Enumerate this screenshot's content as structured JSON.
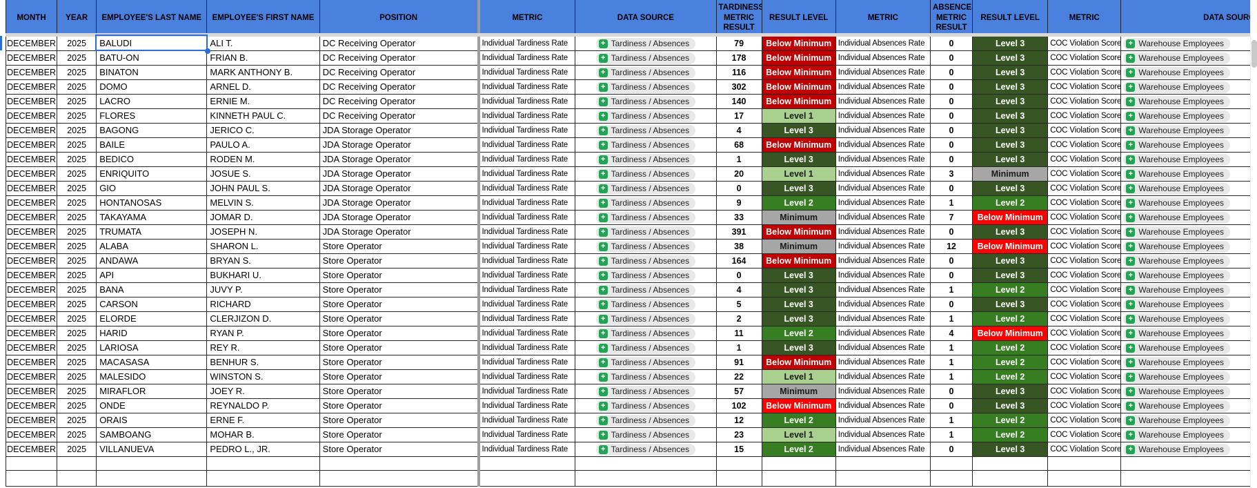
{
  "table": {
    "columns": [
      "MONTH",
      "YEAR",
      "EMPLOYEE'S LAST NAME",
      "EMPLOYEE'S FIRST NAME",
      "POSITION",
      "METRIC",
      "DATA SOURCE",
      "TARDINESS METRIC RESULT",
      "RESULT LEVEL",
      "METRIC",
      "ABSENCES METRIC RESULT",
      "RESULT LEVEL",
      "METRIC",
      "DATA SOURCE"
    ],
    "repeated": {
      "month": "DECEMBER",
      "year": "2025",
      "tardiness_metric": "Individual Tardiness Rate",
      "tardiness_source": "Tardiness / Absences",
      "absences_metric": "Individual Absences Rate",
      "coc_metric": "COC Violation Score",
      "coc_source": "Warehouse Employees"
    },
    "rows": [
      {
        "last_name": "BALUDI",
        "first_name": "ALI T.",
        "position": "DC Receiving Operator",
        "tardiness_result": "79",
        "tardiness_level": "below_min_dark",
        "absences_result": "0",
        "absences_level": "level_3"
      },
      {
        "last_name": "BATU-ON",
        "first_name": "FRIAN B.",
        "position": "DC Receiving Operator",
        "tardiness_result": "178",
        "tardiness_level": "below_min_dark",
        "absences_result": "0",
        "absences_level": "level_3"
      },
      {
        "last_name": "BINATON",
        "first_name": "MARK ANTHONY B.",
        "position": "DC Receiving Operator",
        "tardiness_result": "116",
        "tardiness_level": "below_min_dark",
        "absences_result": "0",
        "absences_level": "level_3"
      },
      {
        "last_name": "DOMO",
        "first_name": "ARNEL D.",
        "position": "DC Receiving Operator",
        "tardiness_result": "302",
        "tardiness_level": "below_min_dark",
        "absences_result": "0",
        "absences_level": "level_3"
      },
      {
        "last_name": "LACRO",
        "first_name": "ERNIE M.",
        "position": "DC Receiving Operator",
        "tardiness_result": "140",
        "tardiness_level": "below_min_dark",
        "absences_result": "0",
        "absences_level": "level_3"
      },
      {
        "last_name": "FLORES",
        "first_name": "KINNETH PAUL C.",
        "position": "DC Receiving Operator",
        "tardiness_result": "17",
        "tardiness_level": "level_1",
        "absences_result": "0",
        "absences_level": "level_3"
      },
      {
        "last_name": "BAGONG",
        "first_name": "JERICO C.",
        "position": "JDA Storage Operator",
        "tardiness_result": "4",
        "tardiness_level": "level_3",
        "absences_result": "0",
        "absences_level": "level_3"
      },
      {
        "last_name": "BAILE",
        "first_name": "PAULO A.",
        "position": "JDA Storage Operator",
        "tardiness_result": "68",
        "tardiness_level": "below_min_dark",
        "absences_result": "0",
        "absences_level": "level_3"
      },
      {
        "last_name": "BEDICO",
        "first_name": "RODEN M.",
        "position": "JDA Storage Operator",
        "tardiness_result": "1",
        "tardiness_level": "level_3",
        "absences_result": "0",
        "absences_level": "level_3"
      },
      {
        "last_name": "ENRIQUITO",
        "first_name": "JOSUE S.",
        "position": "JDA Storage Operator",
        "tardiness_result": "20",
        "tardiness_level": "level_1",
        "absences_result": "3",
        "absences_level": "minimum"
      },
      {
        "last_name": "GIO",
        "first_name": "JOHN PAUL S.",
        "position": "JDA Storage Operator",
        "tardiness_result": "0",
        "tardiness_level": "level_3",
        "absences_result": "0",
        "absences_level": "level_3"
      },
      {
        "last_name": "HONTANOSAS",
        "first_name": "MELVIN S.",
        "position": "JDA Storage Operator",
        "tardiness_result": "9",
        "tardiness_level": "level_2",
        "absences_result": "1",
        "absences_level": "level_2"
      },
      {
        "last_name": "TAKAYAMA",
        "first_name": "JOMAR D.",
        "position": "JDA Storage Operator",
        "tardiness_result": "33",
        "tardiness_level": "minimum",
        "absences_result": "7",
        "absences_level": "below_min_bright"
      },
      {
        "last_name": "TRUMATA",
        "first_name": "JOSEPH N.",
        "position": "JDA Storage Operator",
        "tardiness_result": "391",
        "tardiness_level": "below_min_dark",
        "absences_result": "0",
        "absences_level": "level_3"
      },
      {
        "last_name": "ALABA",
        "first_name": "SHARON L.",
        "position": "Store Operator",
        "tardiness_result": "38",
        "tardiness_level": "minimum",
        "absences_result": "12",
        "absences_level": "below_min_bright"
      },
      {
        "last_name": "ANDAWA",
        "first_name": "BRYAN S.",
        "position": "Store Operator",
        "tardiness_result": "164",
        "tardiness_level": "below_min_dark",
        "absences_result": "0",
        "absences_level": "level_3"
      },
      {
        "last_name": "API",
        "first_name": "BUKHARI U.",
        "position": "Store Operator",
        "tardiness_result": "0",
        "tardiness_level": "level_3",
        "absences_result": "0",
        "absences_level": "level_3"
      },
      {
        "last_name": "BANA",
        "first_name": "JUVY P.",
        "position": "Store Operator",
        "tardiness_result": "4",
        "tardiness_level": "level_3",
        "absences_result": "1",
        "absences_level": "level_2"
      },
      {
        "last_name": "CARSON",
        "first_name": "RICHARD",
        "position": "Store Operator",
        "tardiness_result": "5",
        "tardiness_level": "level_3",
        "absences_result": "0",
        "absences_level": "level_3"
      },
      {
        "last_name": "ELORDE",
        "first_name": "CLERJIZON D.",
        "position": "Store Operator",
        "tardiness_result": "2",
        "tardiness_level": "level_3",
        "absences_result": "1",
        "absences_level": "level_2"
      },
      {
        "last_name": "HARID",
        "first_name": "RYAN P.",
        "position": "Store Operator",
        "tardiness_result": "11",
        "tardiness_level": "level_2",
        "absences_result": "4",
        "absences_level": "below_min_bright"
      },
      {
        "last_name": "LARIOSA",
        "first_name": "REY R.",
        "position": "Store Operator",
        "tardiness_result": "1",
        "tardiness_level": "level_3",
        "absences_result": "1",
        "absences_level": "level_2"
      },
      {
        "last_name": "MACASASA",
        "first_name": "BENHUR S.",
        "position": "Store Operator",
        "tardiness_result": "91",
        "tardiness_level": "below_min_dark",
        "absences_result": "1",
        "absences_level": "level_2"
      },
      {
        "last_name": "MALESIDO",
        "first_name": "WINSTON S.",
        "position": "Store Operator",
        "tardiness_result": "22",
        "tardiness_level": "level_1",
        "absences_result": "1",
        "absences_level": "level_2"
      },
      {
        "last_name": "MIRAFLOR",
        "first_name": "JOEY R.",
        "position": "Store Operator",
        "tardiness_result": "57",
        "tardiness_level": "minimum",
        "absences_result": "0",
        "absences_level": "level_3"
      },
      {
        "last_name": "ONDE",
        "first_name": "REYNALDO P.",
        "position": "Store Operator",
        "tardiness_result": "102",
        "tardiness_level": "below_min_bright",
        "absences_result": "0",
        "absences_level": "level_3"
      },
      {
        "last_name": "ORAIS",
        "first_name": "ERNE F.",
        "position": "Store Operator",
        "tardiness_result": "12",
        "tardiness_level": "level_2",
        "absences_result": "1",
        "absences_level": "level_2"
      },
      {
        "last_name": "SAMBOANG",
        "first_name": "MOHAR B.",
        "position": "Store Operator",
        "tardiness_result": "23",
        "tardiness_level": "level_1",
        "absences_result": "1",
        "absences_level": "level_2"
      },
      {
        "last_name": "VILLANUEVA",
        "first_name": "PEDRO L., JR.",
        "position": "Store Operator",
        "tardiness_result": "15",
        "tardiness_level": "level_2",
        "absences_result": "0",
        "absences_level": "level_3"
      }
    ]
  },
  "levels": {
    "below_min_dark": {
      "label": "Below Minimum",
      "bg": "#C00000",
      "text": "#FFFFFF"
    },
    "below_min_bright": {
      "label": "Below Minimum",
      "bg": "#FF0000",
      "text": "#FFFFFF"
    },
    "minimum": {
      "label": "Minimum",
      "bg": "#A6A6A6",
      "text": "#1A1A1A"
    },
    "level_1": {
      "label": "Level 1",
      "bg": "#A9D08E",
      "text": "#1A1A1A"
    },
    "level_2": {
      "label": "Level 2",
      "bg": "#377D22",
      "text": "#FFFFFF"
    },
    "level_3": {
      "label": "Level 3",
      "bg": "#375623",
      "text": "#FFFFFF"
    }
  },
  "theme": {
    "header_bg": "#4A80DE",
    "header_text": "#000000",
    "grid_line": "#262626",
    "pane_divider": "#9E9E9E",
    "freeze_band": "#D8D8D8",
    "chip_bg": "#E9E8E8",
    "chip_text": "#1F1F1F",
    "chip_icon_green": "#23A455",
    "selection_blue": "#2A6DD9",
    "scrollbar_thumb": "#C9C9C9"
  },
  "selection": {
    "row_index": 0,
    "column_key": "last_name"
  },
  "chip_icon_glyph": "+"
}
